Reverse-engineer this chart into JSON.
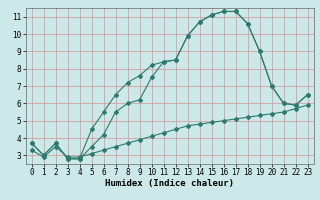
{
  "line1_x": [
    0,
    1,
    2,
    3,
    4,
    5,
    6,
    7,
    8,
    9,
    10,
    11,
    12,
    13,
    14,
    15,
    16,
    17,
    18,
    19,
    20,
    21,
    22,
    23
  ],
  "line1_y": [
    3.7,
    3.0,
    3.7,
    2.8,
    2.8,
    3.5,
    4.2,
    5.5,
    6.0,
    6.2,
    7.5,
    8.4,
    8.5,
    9.9,
    10.7,
    11.1,
    11.3,
    11.3,
    10.6,
    9.0,
    7.0,
    6.0,
    5.9,
    6.5
  ],
  "line2_x": [
    0,
    1,
    2,
    3,
    4,
    5,
    6,
    7,
    8,
    9,
    10,
    11,
    12,
    13,
    14,
    15,
    16,
    17,
    18,
    19,
    20,
    21,
    22,
    23
  ],
  "line2_y": [
    3.7,
    3.0,
    3.7,
    2.8,
    2.8,
    4.5,
    5.5,
    6.5,
    7.2,
    7.6,
    8.2,
    8.4,
    8.5,
    9.9,
    10.7,
    11.1,
    11.3,
    11.3,
    10.6,
    9.0,
    7.0,
    6.0,
    5.9,
    6.5
  ],
  "line3_x": [
    0,
    1,
    2,
    3,
    4,
    5,
    6,
    7,
    8,
    9,
    10,
    11,
    12,
    13,
    14,
    15,
    16,
    17,
    18,
    19,
    20,
    21,
    22,
    23
  ],
  "line3_y": [
    3.3,
    2.9,
    3.5,
    2.9,
    2.9,
    3.1,
    3.3,
    3.5,
    3.7,
    3.9,
    4.1,
    4.3,
    4.5,
    4.7,
    4.8,
    4.9,
    5.0,
    5.1,
    5.2,
    5.3,
    5.4,
    5.5,
    5.7,
    5.9
  ],
  "line_color": "#2d7a6e",
  "bg_color": "#cde8e8",
  "grid_color": "#d4a0a0",
  "xlabel": "Humidex (Indice chaleur)",
  "ylim": [
    2.5,
    11.5
  ],
  "xlim": [
    -0.5,
    23.5
  ],
  "yticks": [
    3,
    4,
    5,
    6,
    7,
    8,
    9,
    10,
    11
  ],
  "xticks": [
    0,
    1,
    2,
    3,
    4,
    5,
    6,
    7,
    8,
    9,
    10,
    11,
    12,
    13,
    14,
    15,
    16,
    17,
    18,
    19,
    20,
    21,
    22,
    23
  ],
  "marker": "D",
  "markersize": 2.0,
  "linewidth": 0.8,
  "xlabel_fontsize": 6.5,
  "tick_fontsize": 5.5
}
